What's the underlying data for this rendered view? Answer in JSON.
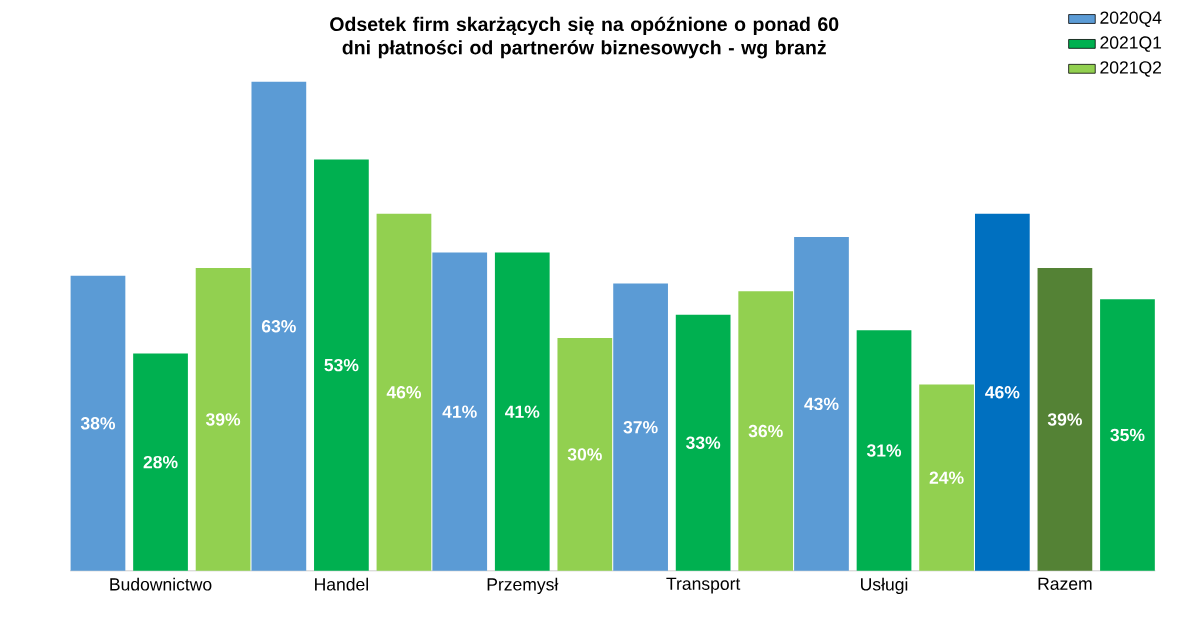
{
  "chart_data": {
    "type": "bar",
    "title": "Odsetek firm skarżących się na opóźnione o ponad 60 dni płatności od partnerów biznesowych - wg branż",
    "categories": [
      "Budownictwo",
      "Handel",
      "Przemysł",
      "Transport",
      "Usługi",
      "Razem"
    ],
    "series": [
      {
        "name": "2020Q4",
        "color": "#5b9bd5",
        "colors": [
          "#5b9bd5",
          "#5b9bd5",
          "#5b9bd5",
          "#5b9bd5",
          "#5b9bd5",
          "#0070c0"
        ],
        "values": [
          38,
          63,
          41,
          37,
          43,
          46
        ],
        "value_labels": [
          "38%",
          "63%",
          "41%",
          "37%",
          "43%",
          "46%"
        ]
      },
      {
        "name": "2021Q1",
        "color": "#00b050",
        "colors": [
          "#00b050",
          "#00b050",
          "#00b050",
          "#00b050",
          "#00b050",
          "#548235"
        ],
        "values": [
          28,
          53,
          41,
          33,
          31,
          39
        ],
        "value_labels": [
          "28%",
          "53%",
          "41%",
          "33%",
          "31%",
          "39%"
        ]
      },
      {
        "name": "2021Q2",
        "color": "#92d050",
        "colors": [
          "#92d050",
          "#92d050",
          "#92d050",
          "#92d050",
          "#92d050",
          "#00b050"
        ],
        "values": [
          39,
          46,
          30,
          36,
          24,
          35
        ],
        "value_labels": [
          "39%",
          "46%",
          "30%",
          "36%",
          "24%",
          "35%"
        ]
      }
    ],
    "legend": "top right"
  }
}
